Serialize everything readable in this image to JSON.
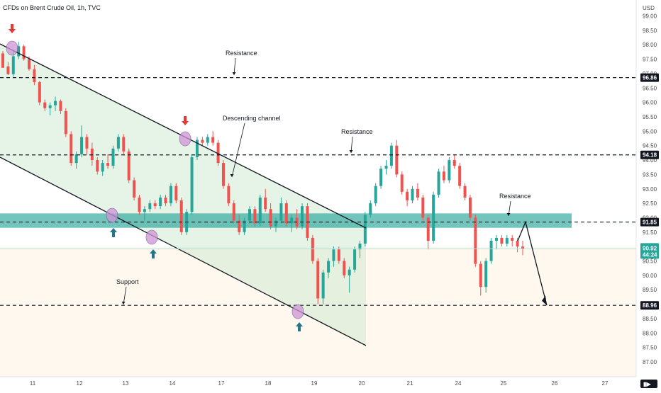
{
  "header": {
    "title": "CFDs on Brent Crude Oil, 1h, TVC",
    "currency": "USD"
  },
  "chart_data": {
    "type": "candlestick",
    "title": "CFDs on Brent Crude Oil, 1h, TVC",
    "y_axis_label": "USD",
    "ylim": [
      86.5,
      99.5
    ],
    "y_ticks": [
      "99.00",
      "98.50",
      "98.00",
      "97.50",
      "97.00",
      "96.50",
      "96.00",
      "95.50",
      "95.00",
      "94.50",
      "94.00",
      "93.50",
      "93.00",
      "92.50",
      "92.00",
      "91.50",
      "91.00",
      "90.50",
      "90.00",
      "89.50",
      "89.00",
      "88.50",
      "88.00",
      "87.50",
      "87.00"
    ],
    "x_ticks": [
      {
        "label": "11",
        "day": 11
      },
      {
        "label": "12",
        "day": 12
      },
      {
        "label": "13",
        "day": 13
      },
      {
        "label": "14",
        "day": 14
      },
      {
        "label": "17",
        "day": 17
      },
      {
        "label": "18",
        "day": 18
      },
      {
        "label": "19",
        "day": 19
      },
      {
        "label": "20",
        "day": 20
      },
      {
        "label": "21",
        "day": 21
      },
      {
        "label": "24",
        "day": 24
      },
      {
        "label": "25",
        "day": 25
      },
      {
        "label": "26",
        "day": 26
      },
      {
        "label": "27",
        "day": 27
      }
    ],
    "price_levels": [
      {
        "name": "resistance-top",
        "value": 96.86,
        "label": "96.86",
        "bg": "#131722"
      },
      {
        "name": "resistance-mid",
        "value": 94.18,
        "label": "94.18",
        "bg": "#131722"
      },
      {
        "name": "resistance-low",
        "value": 91.85,
        "label": "91.85",
        "bg": "#131722"
      },
      {
        "name": "support",
        "value": 88.96,
        "label": "88.96",
        "bg": "#131722"
      }
    ],
    "current_price": {
      "value": 90.92,
      "label": "90.92",
      "countdown": "44:24",
      "bg": "#26a69a"
    },
    "zone": {
      "from": 91.65,
      "to": 92.15,
      "color": "#26a69a"
    },
    "annotations": [
      {
        "text": "Resistance",
        "near": "96.86"
      },
      {
        "text": "Descending channel",
        "near": "channel"
      },
      {
        "text": "Resistance",
        "near": "94.18"
      },
      {
        "text": "Resistance",
        "near": "91.85"
      },
      {
        "text": "Support",
        "near": "88.96"
      }
    ],
    "colors": {
      "up": "#26a69a",
      "down": "#ef5350",
      "channel_fill": "#c8e6c9",
      "lower_fill": "#fff3e0",
      "marker_circle": "#ce93d8",
      "arrow_up": "#26748a",
      "arrow_down": "#e53935"
    },
    "candles": [
      [
        97.7,
        97.78,
        97.25,
        97.2
      ],
      [
        97.25,
        97.4,
        96.95,
        96.98
      ],
      [
        96.98,
        97.8,
        96.9,
        97.6
      ],
      [
        97.6,
        98.1,
        97.5,
        97.95
      ],
      [
        97.95,
        98.0,
        97.45,
        97.5
      ],
      [
        97.5,
        97.6,
        97.1,
        97.15
      ],
      [
        97.15,
        97.3,
        96.6,
        96.7
      ],
      [
        96.7,
        96.75,
        95.9,
        96.0
      ],
      [
        96.0,
        96.1,
        95.7,
        95.8
      ],
      [
        95.8,
        96.0,
        95.55,
        95.9
      ],
      [
        95.9,
        96.2,
        95.7,
        96.05
      ],
      [
        96.05,
        96.1,
        95.6,
        95.7
      ],
      [
        95.7,
        95.8,
        94.8,
        94.9
      ],
      [
        94.9,
        95.0,
        93.8,
        93.9
      ],
      [
        93.9,
        94.3,
        93.7,
        94.2
      ],
      [
        94.2,
        95.2,
        94.1,
        94.8
      ],
      [
        94.8,
        94.9,
        94.2,
        94.4
      ],
      [
        94.4,
        94.6,
        93.8,
        94.0
      ],
      [
        94.0,
        94.1,
        93.5,
        93.6
      ],
      [
        93.6,
        94.0,
        93.45,
        93.9
      ],
      [
        93.9,
        94.2,
        93.7,
        93.8
      ],
      [
        93.8,
        94.5,
        93.7,
        94.4
      ],
      [
        94.4,
        94.9,
        94.3,
        94.8
      ],
      [
        94.8,
        94.9,
        94.2,
        94.3
      ],
      [
        94.3,
        94.4,
        93.2,
        93.3
      ],
      [
        93.3,
        93.4,
        92.6,
        92.7
      ],
      [
        92.7,
        92.8,
        92.1,
        92.2
      ],
      [
        92.2,
        92.4,
        91.9,
        92.3
      ],
      [
        92.3,
        92.6,
        92.2,
        92.5
      ],
      [
        92.5,
        92.6,
        92.3,
        92.4
      ],
      [
        92.4,
        92.8,
        92.3,
        92.7
      ],
      [
        92.7,
        92.8,
        92.4,
        92.5
      ],
      [
        92.5,
        93.2,
        92.4,
        93.1
      ],
      [
        93.1,
        93.2,
        92.5,
        92.6
      ],
      [
        92.6,
        92.7,
        91.4,
        91.5
      ],
      [
        91.5,
        92.3,
        91.4,
        92.2
      ],
      [
        92.2,
        94.2,
        92.1,
        94.1
      ],
      [
        94.1,
        94.8,
        94.0,
        94.7
      ],
      [
        94.7,
        94.8,
        94.5,
        94.6
      ],
      [
        94.6,
        94.9,
        94.5,
        94.8
      ],
      [
        94.8,
        95.0,
        94.5,
        94.6
      ],
      [
        94.6,
        94.7,
        93.8,
        93.9
      ],
      [
        93.9,
        94.0,
        93.0,
        93.1
      ],
      [
        93.1,
        93.2,
        92.4,
        92.5
      ],
      [
        92.5,
        92.6,
        91.8,
        91.9
      ],
      [
        91.9,
        92.1,
        91.4,
        91.5
      ],
      [
        91.5,
        92.0,
        91.4,
        91.9
      ],
      [
        91.9,
        92.4,
        91.8,
        92.3
      ],
      [
        92.3,
        92.4,
        91.7,
        91.8
      ],
      [
        91.8,
        92.8,
        91.7,
        92.7
      ],
      [
        92.7,
        93.0,
        92.2,
        92.3
      ],
      [
        92.3,
        92.5,
        91.6,
        91.7
      ],
      [
        91.7,
        92.0,
        91.5,
        91.9
      ],
      [
        91.9,
        92.7,
        91.8,
        92.5
      ],
      [
        92.5,
        92.6,
        91.7,
        91.8
      ],
      [
        91.8,
        92.1,
        91.5,
        92.0
      ],
      [
        92.0,
        92.3,
        91.6,
        91.7
      ],
      [
        91.7,
        92.5,
        91.6,
        92.4
      ],
      [
        92.4,
        92.5,
        91.2,
        91.3
      ],
      [
        91.3,
        91.4,
        90.4,
        90.5
      ],
      [
        90.5,
        90.6,
        89.0,
        89.2
      ],
      [
        89.2,
        90.2,
        89.0,
        90.1
      ],
      [
        90.1,
        90.6,
        89.9,
        90.5
      ],
      [
        90.5,
        91.0,
        90.3,
        90.9
      ],
      [
        90.9,
        91.0,
        90.4,
        90.5
      ],
      [
        90.5,
        90.6,
        89.9,
        90.0
      ],
      [
        90.0,
        90.3,
        89.4,
        90.2
      ],
      [
        90.2,
        91.0,
        90.1,
        90.9
      ],
      [
        90.9,
        91.2,
        90.6,
        91.1
      ],
      [
        91.1,
        92.2,
        91.0,
        92.1
      ],
      [
        92.1,
        92.6,
        92.0,
        92.5
      ],
      [
        92.5,
        93.2,
        92.4,
        93.1
      ],
      [
        93.1,
        93.8,
        93.0,
        93.7
      ],
      [
        93.7,
        94.0,
        93.5,
        93.8
      ],
      [
        93.8,
        94.6,
        93.7,
        94.5
      ],
      [
        94.5,
        94.7,
        93.4,
        93.5
      ],
      [
        93.5,
        93.6,
        92.8,
        92.9
      ],
      [
        92.9,
        93.0,
        92.4,
        92.6
      ],
      [
        92.6,
        93.1,
        92.5,
        93.0
      ],
      [
        93.0,
        93.2,
        92.6,
        92.7
      ],
      [
        92.7,
        92.8,
        91.9,
        92.0
      ],
      [
        92.0,
        92.1,
        90.9,
        91.2
      ],
      [
        91.2,
        92.9,
        91.1,
        92.8
      ],
      [
        92.8,
        93.7,
        92.7,
        93.6
      ],
      [
        93.6,
        93.8,
        93.2,
        93.3
      ],
      [
        93.3,
        94.1,
        93.2,
        94.0
      ],
      [
        94.0,
        94.2,
        93.7,
        93.8
      ],
      [
        93.8,
        93.9,
        93.0,
        93.1
      ],
      [
        93.1,
        93.2,
        92.6,
        92.7
      ],
      [
        92.7,
        92.8,
        91.9,
        92.0
      ],
      [
        92.0,
        92.1,
        90.3,
        90.4
      ],
      [
        90.4,
        90.5,
        89.3,
        89.6
      ],
      [
        89.6,
        90.6,
        89.4,
        90.5
      ],
      [
        90.5,
        91.3,
        90.4,
        91.2
      ],
      [
        91.2,
        91.4,
        90.9,
        91.3
      ],
      [
        91.3,
        91.4,
        91.0,
        91.1
      ],
      [
        91.1,
        91.4,
        91.0,
        91.3
      ],
      [
        91.3,
        91.4,
        91.0,
        91.2
      ],
      [
        91.2,
        91.3,
        90.8,
        91.0
      ],
      [
        91.0,
        91.2,
        90.7,
        90.92
      ]
    ]
  }
}
